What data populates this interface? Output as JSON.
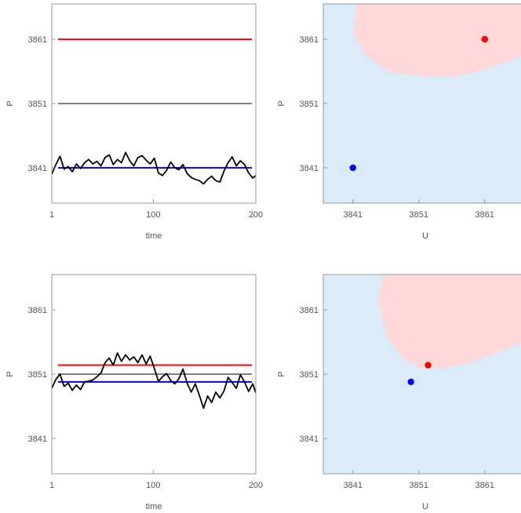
{
  "chart_data": [
    {
      "type": "line",
      "panel": "top-left",
      "xlabel": "time",
      "ylabel": "P",
      "xlim": [
        1,
        200
      ],
      "ylim": [
        3835.5,
        3866.5
      ],
      "xticks": [
        1,
        100,
        200
      ],
      "xtick_labels": [
        "1",
        "100",
        "200"
      ],
      "yticks": [
        3841,
        3851,
        3861
      ],
      "ytick_labels": [
        "3841",
        "3851",
        "3861"
      ],
      "hlines": [
        {
          "y": 3861,
          "color": "#ff0000"
        },
        {
          "y": 3851,
          "color": "#808080"
        },
        {
          "y": 3841,
          "color": "#0000ff"
        }
      ],
      "series": [
        {
          "color": "#000000",
          "x": [
            1,
            5,
            9,
            13,
            17,
            21,
            25,
            29,
            33,
            37,
            41,
            45,
            49,
            53,
            57,
            61,
            65,
            69,
            73,
            77,
            81,
            85,
            89,
            93,
            97,
            101,
            105,
            109,
            113,
            117,
            121,
            125,
            129,
            133,
            137,
            141,
            145,
            149,
            153,
            157,
            161,
            165,
            169,
            173,
            177,
            181,
            185,
            189,
            193,
            197,
            200
          ],
          "y": [
            3840.0,
            3841.5,
            3842.8,
            3840.8,
            3841.2,
            3840.4,
            3841.6,
            3840.9,
            3841.8,
            3842.3,
            3841.6,
            3842.0,
            3841.3,
            3842.6,
            3843.0,
            3841.5,
            3842.3,
            3841.8,
            3843.4,
            3842.1,
            3841.3,
            3842.6,
            3842.9,
            3842.2,
            3841.6,
            3842.5,
            3840.2,
            3839.8,
            3840.6,
            3841.9,
            3841.0,
            3840.7,
            3841.5,
            3840.1,
            3839.5,
            3839.2,
            3839.0,
            3838.5,
            3839.2,
            3839.7,
            3839.0,
            3838.8,
            3840.5,
            3841.8,
            3842.7,
            3841.3,
            3842.1,
            3841.5,
            3840.2,
            3839.4,
            3839.8
          ]
        }
      ]
    },
    {
      "type": "region",
      "panel": "top-right",
      "xlabel": "U",
      "ylabel": "P",
      "xlim": [
        3836.5,
        3866.5
      ],
      "ylim": [
        3835.5,
        3866.5
      ],
      "xticks": [
        3841,
        3851,
        3861
      ],
      "xtick_labels": [
        "3841",
        "3851",
        "3861"
      ],
      "yticks": [
        3841,
        3851,
        3861
      ],
      "ytick_labels": [
        "3841",
        "3851",
        "3861"
      ],
      "background_color": "#dcebfa",
      "region_color": "#ffd9d9",
      "region_boundary": [
        [
          3841.6,
          3866.5
        ],
        [
          3841.0,
          3862.0
        ],
        [
          3843.0,
          3858.3
        ],
        [
          3847.0,
          3855.8
        ],
        [
          3852.0,
          3855.2
        ],
        [
          3857.0,
          3855.3
        ],
        [
          3861.0,
          3856.3
        ],
        [
          3866.5,
          3858.4
        ]
      ],
      "points": [
        {
          "u": 3841,
          "p": 3841,
          "color": "#0000ff"
        },
        {
          "u": 3861,
          "p": 3861,
          "color": "#ff0000"
        }
      ]
    },
    {
      "type": "line",
      "panel": "bottom-left",
      "xlabel": "time",
      "ylabel": "P",
      "xlim": [
        1,
        200
      ],
      "ylim": [
        3835.5,
        3866.5
      ],
      "xticks": [
        1,
        100,
        200
      ],
      "xtick_labels": [
        "1",
        "100",
        "200"
      ],
      "yticks": [
        3841,
        3851,
        3861
      ],
      "ytick_labels": [
        "3841",
        "3851",
        "3861"
      ],
      "hlines": [
        {
          "y": 3852.4,
          "color": "#ff0000"
        },
        {
          "y": 3851.0,
          "color": "#808080"
        },
        {
          "y": 3849.8,
          "color": "#0000ff"
        }
      ],
      "series": [
        {
          "color": "#000000",
          "x": [
            1,
            5,
            9,
            13,
            17,
            21,
            25,
            29,
            33,
            37,
            41,
            45,
            49,
            53,
            57,
            61,
            65,
            69,
            73,
            77,
            81,
            85,
            89,
            93,
            97,
            101,
            105,
            109,
            113,
            117,
            121,
            125,
            129,
            133,
            137,
            141,
            145,
            149,
            153,
            157,
            161,
            165,
            169,
            173,
            177,
            181,
            185,
            189,
            193,
            197,
            200
          ],
          "y": [
            3848.8,
            3850.2,
            3851.0,
            3849.1,
            3849.6,
            3848.5,
            3849.3,
            3848.6,
            3849.8,
            3849.9,
            3850.1,
            3850.6,
            3851.2,
            3852.8,
            3853.5,
            3852.4,
            3854.3,
            3853.0,
            3854.0,
            3853.2,
            3853.7,
            3852.8,
            3854.0,
            3852.6,
            3853.8,
            3851.9,
            3849.9,
            3850.6,
            3851.1,
            3850.0,
            3849.5,
            3850.3,
            3851.8,
            3849.6,
            3848.2,
            3849.5,
            3847.7,
            3845.7,
            3847.6,
            3846.6,
            3848.2,
            3847.3,
            3848.4,
            3850.5,
            3849.7,
            3848.8,
            3850.9,
            3849.8,
            3848.3,
            3849.5,
            3848.1
          ]
        }
      ]
    },
    {
      "type": "region",
      "panel": "bottom-right",
      "xlabel": "U",
      "ylabel": "P",
      "xlim": [
        3836.5,
        3866.5
      ],
      "ylim": [
        3835.5,
        3866.5
      ],
      "xticks": [
        3841,
        3851,
        3861
      ],
      "xtick_labels": [
        "3841",
        "3851",
        "3861"
      ],
      "yticks": [
        3841,
        3851,
        3861
      ],
      "ytick_labels": [
        "3841",
        "3851",
        "3861"
      ],
      "background_color": "#dcebfa",
      "region_color": "#ffd9d9",
      "region_boundary": [
        [
          3845.5,
          3866.5
        ],
        [
          3844.8,
          3862.5
        ],
        [
          3846.0,
          3857.0
        ],
        [
          3848.5,
          3853.6
        ],
        [
          3851.0,
          3852.0
        ],
        [
          3854.0,
          3851.9
        ],
        [
          3858.0,
          3852.6
        ],
        [
          3862.0,
          3854.0
        ],
        [
          3866.5,
          3856.0
        ]
      ],
      "points": [
        {
          "u": 3849.8,
          "p": 3849.8,
          "color": "#0000ff"
        },
        {
          "u": 3852.4,
          "p": 3852.4,
          "color": "#ff0000"
        }
      ]
    }
  ]
}
